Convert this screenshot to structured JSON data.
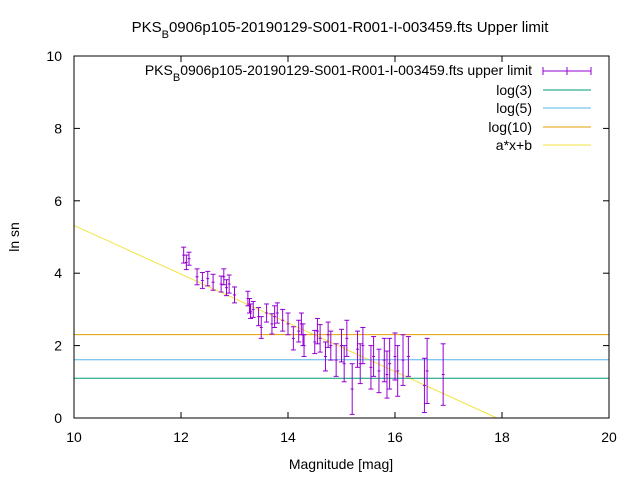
{
  "chart_data": {
    "type": "scatter",
    "title": {
      "main": "PKS",
      "sub": "B",
      "rest": "0906p105-20190129-S001-R001-I-003459.fts Upper limit"
    },
    "xlabel": "Magnitude [mag]",
    "ylabel": "ln sn",
    "xlim": [
      10,
      20
    ],
    "ylim": [
      0,
      10
    ],
    "x_ticks": [
      10,
      12,
      14,
      16,
      18,
      20
    ],
    "y_ticks": [
      0,
      2,
      4,
      6,
      8,
      10
    ],
    "grid": false,
    "legend_position": "top-right",
    "colors": {
      "data": "#9400d3",
      "log3": "#009e73",
      "log5": "#56b4e9",
      "log10": "#e69f00",
      "fit": "#f0e442"
    },
    "series": [
      {
        "name": "upper limit",
        "label_main": "PKS",
        "label_sub": "B",
        "label_rest": "0906p105-20190129-S001-R001-I-003459.fts upper limit",
        "kind": "errorbars",
        "points": [
          {
            "x": 12.05,
            "y": 4.5,
            "err": 0.22
          },
          {
            "x": 12.1,
            "y": 4.3,
            "err": 0.2
          },
          {
            "x": 12.15,
            "y": 4.4,
            "err": 0.18
          },
          {
            "x": 12.3,
            "y": 3.9,
            "err": 0.22
          },
          {
            "x": 12.4,
            "y": 3.8,
            "err": 0.22
          },
          {
            "x": 12.5,
            "y": 3.85,
            "err": 0.2
          },
          {
            "x": 12.6,
            "y": 3.75,
            "err": 0.22
          },
          {
            "x": 12.75,
            "y": 3.7,
            "err": 0.22
          },
          {
            "x": 12.8,
            "y": 3.9,
            "err": 0.22
          },
          {
            "x": 12.85,
            "y": 3.6,
            "err": 0.22
          },
          {
            "x": 12.9,
            "y": 3.7,
            "err": 0.25
          },
          {
            "x": 13.0,
            "y": 3.4,
            "err": 0.22
          },
          {
            "x": 13.25,
            "y": 3.3,
            "err": 0.2
          },
          {
            "x": 13.28,
            "y": 3.1,
            "err": 0.2
          },
          {
            "x": 13.3,
            "y": 2.95,
            "err": 0.2
          },
          {
            "x": 13.35,
            "y": 3.0,
            "err": 0.22
          },
          {
            "x": 13.45,
            "y": 2.8,
            "err": 0.25
          },
          {
            "x": 13.5,
            "y": 2.5,
            "err": 0.3
          },
          {
            "x": 13.6,
            "y": 2.9,
            "err": 0.25
          },
          {
            "x": 13.7,
            "y": 2.6,
            "err": 0.28
          },
          {
            "x": 13.75,
            "y": 2.8,
            "err": 0.3
          },
          {
            "x": 13.8,
            "y": 2.9,
            "err": 0.28
          },
          {
            "x": 13.9,
            "y": 2.7,
            "err": 0.3
          },
          {
            "x": 14.0,
            "y": 2.6,
            "err": 0.3
          },
          {
            "x": 14.1,
            "y": 2.2,
            "err": 0.32
          },
          {
            "x": 14.2,
            "y": 2.4,
            "err": 0.3
          },
          {
            "x": 14.25,
            "y": 2.6,
            "err": 0.3
          },
          {
            "x": 14.28,
            "y": 2.3,
            "err": 0.3
          },
          {
            "x": 14.3,
            "y": 2.0,
            "err": 0.3
          },
          {
            "x": 14.5,
            "y": 2.1,
            "err": 0.32
          },
          {
            "x": 14.55,
            "y": 2.4,
            "err": 0.35
          },
          {
            "x": 14.6,
            "y": 2.2,
            "err": 0.38
          },
          {
            "x": 14.7,
            "y": 1.7,
            "err": 0.4
          },
          {
            "x": 14.75,
            "y": 2.3,
            "err": 0.35
          },
          {
            "x": 14.8,
            "y": 2.0,
            "err": 0.4
          },
          {
            "x": 14.9,
            "y": 1.6,
            "err": 0.45
          },
          {
            "x": 15.0,
            "y": 2.0,
            "err": 0.45
          },
          {
            "x": 15.05,
            "y": 1.5,
            "err": 0.5
          },
          {
            "x": 15.1,
            "y": 2.2,
            "err": 0.5
          },
          {
            "x": 15.2,
            "y": 0.8,
            "err": 0.7
          },
          {
            "x": 15.3,
            "y": 1.9,
            "err": 0.5
          },
          {
            "x": 15.35,
            "y": 1.5,
            "err": 0.55
          },
          {
            "x": 15.4,
            "y": 2.0,
            "err": 0.5
          },
          {
            "x": 15.55,
            "y": 1.4,
            "err": 0.6
          },
          {
            "x": 15.6,
            "y": 1.7,
            "err": 0.55
          },
          {
            "x": 15.7,
            "y": 1.3,
            "err": 0.6
          },
          {
            "x": 15.8,
            "y": 1.6,
            "err": 0.6
          },
          {
            "x": 15.85,
            "y": 1.2,
            "err": 0.65
          },
          {
            "x": 15.9,
            "y": 1.5,
            "err": 0.7
          },
          {
            "x": 16.0,
            "y": 1.7,
            "err": 0.65
          },
          {
            "x": 16.05,
            "y": 1.3,
            "err": 0.7
          },
          {
            "x": 16.15,
            "y": 1.6,
            "err": 0.7
          },
          {
            "x": 16.25,
            "y": 1.7,
            "err": 0.55
          },
          {
            "x": 16.55,
            "y": 0.9,
            "err": 0.75
          },
          {
            "x": 16.6,
            "y": 1.3,
            "err": 0.9
          },
          {
            "x": 16.9,
            "y": 1.2,
            "err": 0.85
          }
        ]
      },
      {
        "name": "log(3)",
        "kind": "hline",
        "y": 1.0986
      },
      {
        "name": "log(5)",
        "kind": "hline",
        "y": 1.6094
      },
      {
        "name": "log(10)",
        "kind": "hline",
        "y": 2.3026
      },
      {
        "name": "a*x+b",
        "kind": "line",
        "slope": -0.673,
        "intercept": 12.05
      }
    ]
  }
}
